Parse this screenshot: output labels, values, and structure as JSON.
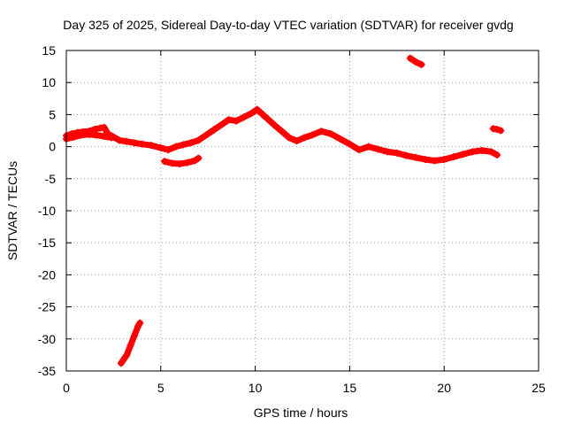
{
  "chart_data": {
    "type": "scatter",
    "title": "Day 325 of 2025, Sidereal Day-to-day VTEC variation (SDTVAR) for receiver gvdg",
    "xlabel": "GPS time / hours",
    "ylabel": "SDTVAR / TECUs",
    "xlim": [
      0,
      25
    ],
    "ylim": [
      -35,
      15
    ],
    "x_ticks": [
      0,
      5,
      10,
      15,
      20,
      25
    ],
    "y_ticks": [
      15,
      10,
      5,
      0,
      -5,
      -10,
      -15,
      -20,
      -25,
      -30,
      -35
    ],
    "grid": true,
    "series_color": "#ff0000",
    "segments": [
      {
        "name": "main-trace",
        "points": [
          [
            0.0,
            1.7
          ],
          [
            0.3,
            2.0
          ],
          [
            0.6,
            2.2
          ],
          [
            0.9,
            2.3
          ],
          [
            1.2,
            2.4
          ],
          [
            1.5,
            2.7
          ],
          [
            1.8,
            2.9
          ],
          [
            2.0,
            3.0
          ],
          [
            2.2,
            2.0
          ],
          [
            2.5,
            1.5
          ],
          [
            2.8,
            1.0
          ],
          [
            3.2,
            0.8
          ],
          [
            3.6,
            0.6
          ],
          [
            4.0,
            0.4
          ],
          [
            4.5,
            0.2
          ],
          [
            5.0,
            -0.2
          ],
          [
            5.4,
            -0.5
          ],
          [
            5.8,
            0.0
          ],
          [
            6.2,
            0.3
          ],
          [
            6.6,
            0.6
          ],
          [
            7.0,
            1.0
          ],
          [
            7.4,
            1.8
          ],
          [
            7.8,
            2.6
          ],
          [
            8.2,
            3.4
          ],
          [
            8.6,
            4.2
          ],
          [
            9.0,
            4.0
          ],
          [
            9.4,
            4.6
          ],
          [
            9.8,
            5.2
          ],
          [
            10.1,
            5.8
          ],
          [
            10.4,
            5.0
          ],
          [
            10.7,
            4.2
          ],
          [
            11.0,
            3.4
          ],
          [
            11.4,
            2.4
          ],
          [
            11.8,
            1.4
          ],
          [
            12.2,
            0.9
          ],
          [
            12.6,
            1.4
          ],
          [
            13.0,
            1.8
          ],
          [
            13.5,
            2.4
          ],
          [
            14.0,
            2.0
          ],
          [
            14.5,
            1.2
          ],
          [
            15.0,
            0.4
          ],
          [
            15.5,
            -0.5
          ],
          [
            16.0,
            0.0
          ],
          [
            16.5,
            -0.4
          ],
          [
            17.0,
            -0.8
          ],
          [
            17.5,
            -1.0
          ],
          [
            18.0,
            -1.4
          ],
          [
            18.5,
            -1.7
          ],
          [
            19.0,
            -2.0
          ],
          [
            19.5,
            -2.2
          ],
          [
            20.0,
            -2.0
          ],
          [
            20.5,
            -1.6
          ],
          [
            21.0,
            -1.2
          ],
          [
            21.5,
            -0.8
          ],
          [
            22.0,
            -0.6
          ],
          [
            22.5,
            -0.8
          ],
          [
            22.8,
            -1.3
          ]
        ]
      },
      {
        "name": "start-band",
        "points": [
          [
            0.0,
            1.2
          ],
          [
            0.4,
            1.5
          ],
          [
            0.8,
            1.8
          ],
          [
            1.2,
            1.9
          ],
          [
            1.6,
            1.8
          ],
          [
            2.0,
            1.6
          ],
          [
            2.4,
            1.4
          ]
        ]
      },
      {
        "name": "dip-trace",
        "points": [
          [
            5.2,
            -2.3
          ],
          [
            5.6,
            -2.6
          ],
          [
            6.0,
            -2.7
          ],
          [
            6.4,
            -2.5
          ],
          [
            6.8,
            -2.2
          ],
          [
            7.0,
            -1.8
          ]
        ]
      },
      {
        "name": "rise-trace",
        "points": [
          [
            2.9,
            -33.8
          ],
          [
            3.2,
            -32.5
          ],
          [
            3.4,
            -31.0
          ],
          [
            3.6,
            -29.5
          ],
          [
            3.8,
            -28.0
          ],
          [
            3.9,
            -27.5
          ]
        ]
      },
      {
        "name": "high-trace",
        "points": [
          [
            18.2,
            13.8
          ],
          [
            18.5,
            13.2
          ],
          [
            18.8,
            12.8
          ]
        ]
      },
      {
        "name": "end-trace",
        "points": [
          [
            22.6,
            2.8
          ],
          [
            22.8,
            2.7
          ],
          [
            23.0,
            2.5
          ]
        ]
      }
    ]
  }
}
